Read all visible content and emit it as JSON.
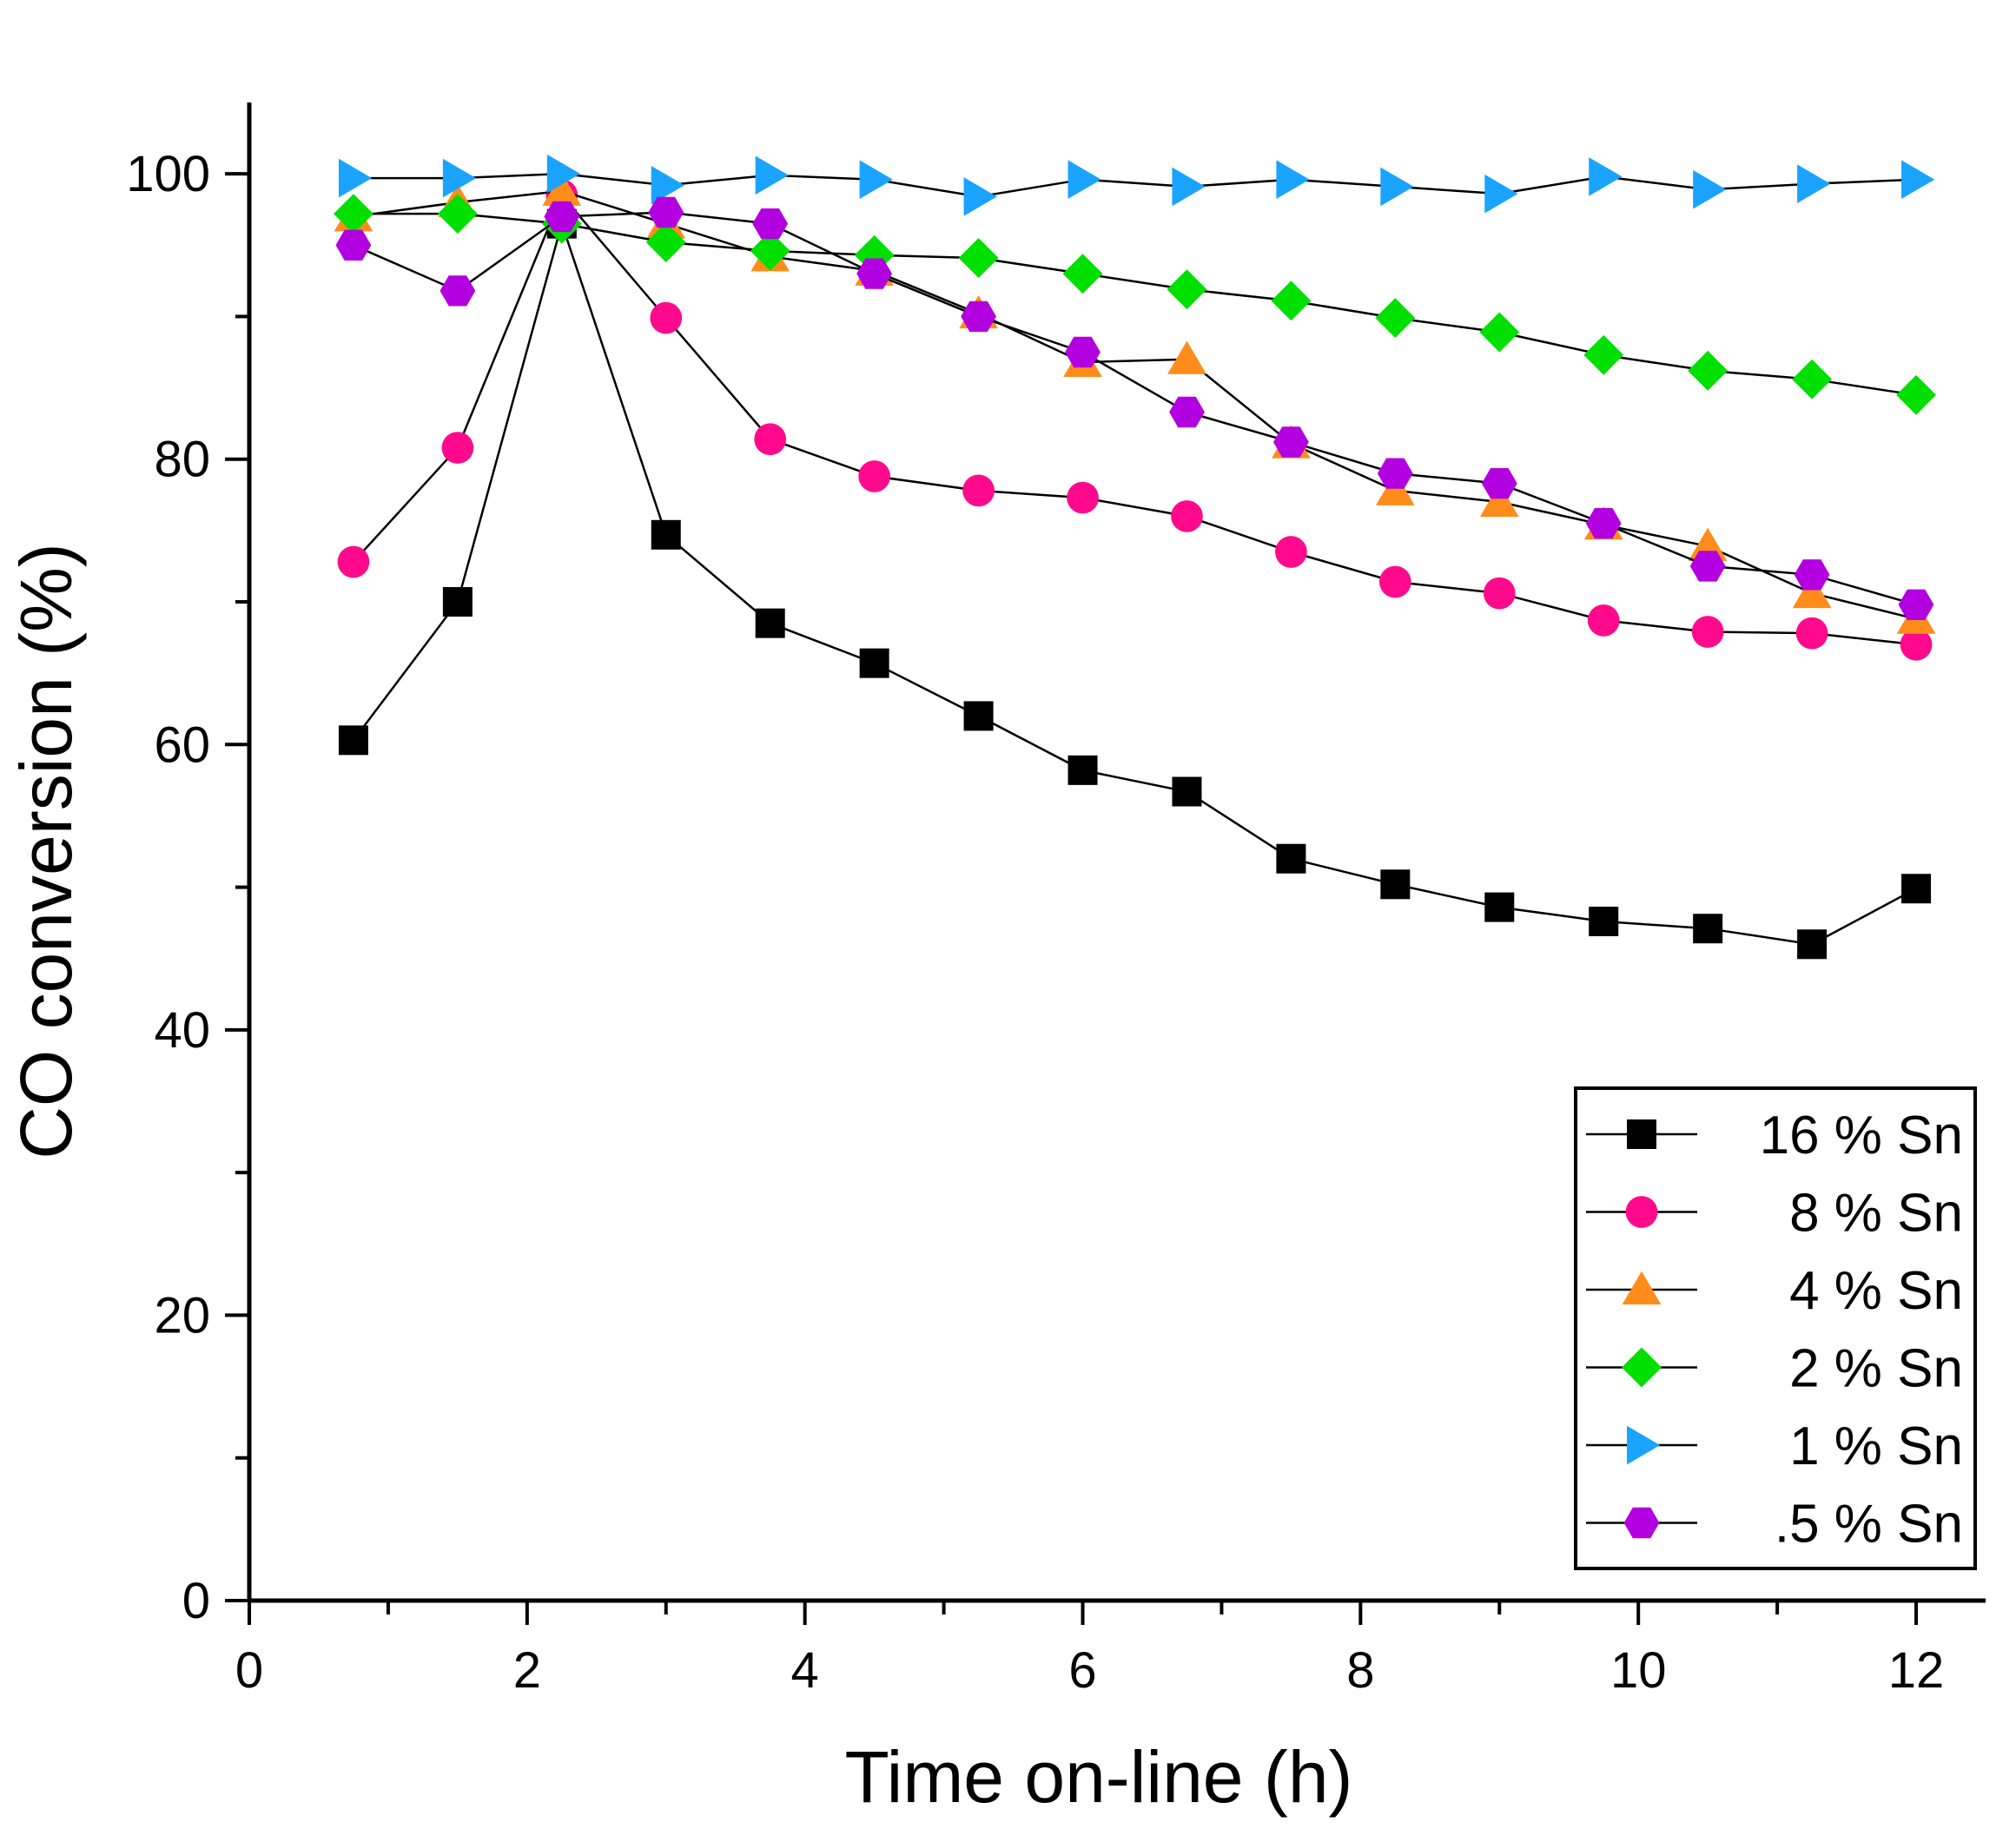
{
  "chart_data": {
    "type": "line",
    "xlabel": "Time on-line (h)",
    "ylabel": "CO conversion (%)",
    "xlim": [
      0,
      12.5
    ],
    "ylim": [
      0,
      105
    ],
    "xticks": [
      0,
      2,
      4,
      6,
      8,
      10,
      12
    ],
    "xtick_labels": [
      "0",
      "2",
      "4",
      "6",
      "8",
      "10",
      "12"
    ],
    "yticks": [
      0,
      20,
      40,
      60,
      80,
      100
    ],
    "ytick_labels": [
      "0",
      "20",
      "40",
      "60",
      "80",
      "100"
    ],
    "grid": false,
    "legend_position": "bottom-right",
    "x": [
      0.75,
      1.5,
      2.25,
      3,
      3.75,
      4.5,
      5.25,
      6,
      6.75,
      7.5,
      8.25,
      9,
      9.75,
      10.5,
      11.25,
      12
    ],
    "series": [
      {
        "name": "16 % Sn",
        "marker": "square",
        "color": "#000000",
        "values": [
          60.3,
          70,
          96.5,
          74.7,
          68.5,
          65.7,
          62,
          58.2,
          56.7,
          52,
          50.2,
          48.6,
          47.6,
          47.1,
          46,
          49.9
        ]
      },
      {
        "name": "8 % Sn",
        "marker": "circle",
        "color": "#ff0a8c",
        "values": [
          72.8,
          80.8,
          98.5,
          89.9,
          81.4,
          78.8,
          77.8,
          77.3,
          76,
          73.5,
          71.4,
          70.6,
          68.7,
          67.9,
          67.8,
          67
        ]
      },
      {
        "name": "4 % Sn",
        "marker": "triangle-up",
        "color": "#ff8c1a",
        "values": [
          97,
          98,
          98.8,
          96.5,
          94.2,
          93.2,
          90.2,
          86.8,
          87,
          81.1,
          77.8,
          77,
          75.4,
          73.9,
          70.6,
          68.8
        ]
      },
      {
        "name": "2 % Sn",
        "marker": "diamond",
        "color": "#00e000",
        "values": [
          97.2,
          97.2,
          96.5,
          95.2,
          94.6,
          94.3,
          94.1,
          93,
          91.9,
          91.1,
          89.9,
          88.9,
          87.3,
          86.2,
          85.6,
          84.5
        ]
      },
      {
        "name": "1 % Sn",
        "marker": "triangle-right",
        "color": "#1aa3ff",
        "values": [
          99.7,
          99.7,
          100,
          99.2,
          99.9,
          99.6,
          98.4,
          99.6,
          99.1,
          99.6,
          99.1,
          98.6,
          99.8,
          98.9,
          99.3,
          99.6
        ]
      },
      {
        "name": ".5 % Sn",
        "marker": "hexagon",
        "color": "#b300e0",
        "values": [
          95,
          91.8,
          97,
          97.3,
          96.5,
          93,
          90,
          87.5,
          83.3,
          81.2,
          79,
          78.3,
          75.5,
          72.5,
          71.9,
          69.8
        ]
      }
    ]
  }
}
